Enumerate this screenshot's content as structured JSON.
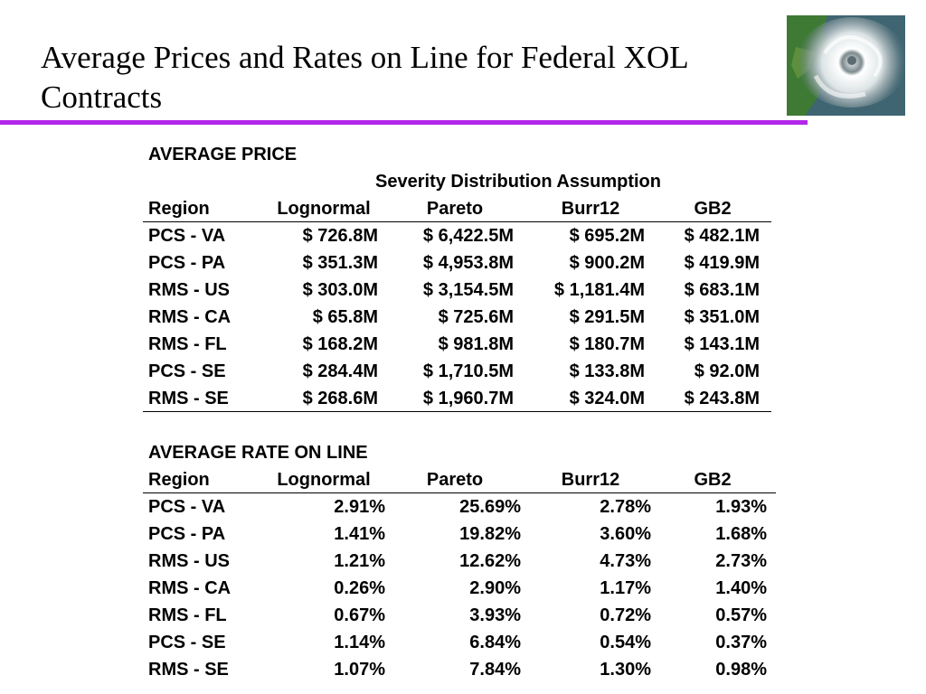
{
  "slide": {
    "title": "Average Prices and Rates on Line for Federal XOL Contracts"
  },
  "price_table": {
    "heading": "AVERAGE PRICE",
    "group_header": "Severity Distribution Assumption",
    "columns": [
      "Region",
      "Lognormal",
      "Pareto",
      "Burr12",
      "GB2"
    ],
    "rows": [
      [
        "PCS - VA",
        "$ 726.8M",
        "$ 6,422.5M",
        "$ 695.2M",
        "$ 482.1M"
      ],
      [
        "PCS - PA",
        "$ 351.3M",
        "$ 4,953.8M",
        "$ 900.2M",
        "$ 419.9M"
      ],
      [
        "RMS - US",
        "$ 303.0M",
        "$ 3,154.5M",
        "$ 1,181.4M",
        "$ 683.1M"
      ],
      [
        "RMS - CA",
        "$ 65.8M",
        "$ 725.6M",
        "$ 291.5M",
        "$ 351.0M"
      ],
      [
        "RMS - FL",
        "$ 168.2M",
        "$ 981.8M",
        "$ 180.7M",
        "$ 143.1M"
      ],
      [
        "PCS - SE",
        "$ 284.4M",
        "$ 1,710.5M",
        "$ 133.8M",
        "$ 92.0M"
      ],
      [
        "RMS - SE",
        "$ 268.6M",
        "$ 1,960.7M",
        "$ 324.0M",
        "$ 243.8M"
      ]
    ]
  },
  "rate_table": {
    "heading": "AVERAGE RATE ON LINE",
    "columns": [
      "Region",
      "Lognormal",
      "Pareto",
      "Burr12",
      "GB2"
    ],
    "rows": [
      [
        "PCS - VA",
        "2.91%",
        "25.69%",
        "2.78%",
        "1.93%"
      ],
      [
        "PCS - PA",
        "1.41%",
        "19.82%",
        "3.60%",
        "1.68%"
      ],
      [
        "RMS - US",
        "1.21%",
        "12.62%",
        "4.73%",
        "2.73%"
      ],
      [
        "RMS - CA",
        "0.26%",
        "2.90%",
        "1.17%",
        "1.40%"
      ],
      [
        "RMS - FL",
        "0.67%",
        "3.93%",
        "0.72%",
        "0.57%"
      ],
      [
        "PCS - SE",
        "1.14%",
        "6.84%",
        "0.54%",
        "0.37%"
      ],
      [
        "RMS - SE",
        "1.07%",
        "7.84%",
        "1.30%",
        "0.98%"
      ]
    ]
  },
  "colors": {
    "title_rule": "#b226e8"
  },
  "icons": {
    "hurricane": "hurricane-satellite-image"
  }
}
